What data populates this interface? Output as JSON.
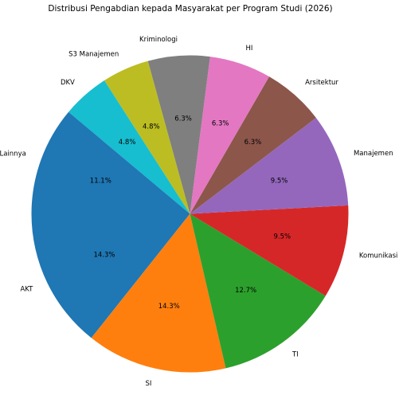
{
  "chart_data": {
    "type": "pie",
    "title": "Distribusi Pengabdian kepada Masyarakat per Program Studi (2026)",
    "start_angle_deg": 180,
    "direction": "counterclockwise",
    "slices": [
      {
        "label": "AKT",
        "value": 14.3,
        "pct_text": "14.3%",
        "color": "#1f77b4"
      },
      {
        "label": "SI",
        "value": 14.3,
        "pct_text": "14.3%",
        "color": "#ff7f0e"
      },
      {
        "label": "TI",
        "value": 12.7,
        "pct_text": "12.7%",
        "color": "#2ca02c"
      },
      {
        "label": "Komunikasi",
        "value": 9.5,
        "pct_text": "9.5%",
        "color": "#d62728"
      },
      {
        "label": "Manajemen",
        "value": 9.5,
        "pct_text": "9.5%",
        "color": "#9467bd"
      },
      {
        "label": "Arsitektur",
        "value": 6.3,
        "pct_text": "6.3%",
        "color": "#8c564b"
      },
      {
        "label": "HI",
        "value": 6.3,
        "pct_text": "6.3%",
        "color": "#e377c2"
      },
      {
        "label": "Kriminologi",
        "value": 6.3,
        "pct_text": "6.3%",
        "color": "#7f7f7f"
      },
      {
        "label": "S3 Manajemen",
        "value": 4.8,
        "pct_text": "4.8%",
        "color": "#bcbd22"
      },
      {
        "label": "DKV",
        "value": 4.8,
        "pct_text": "4.8%",
        "color": "#17becf"
      },
      {
        "label": "Lainnya",
        "value": 11.1,
        "pct_text": "11.1%",
        "color": "#1f77b4"
      }
    ]
  }
}
